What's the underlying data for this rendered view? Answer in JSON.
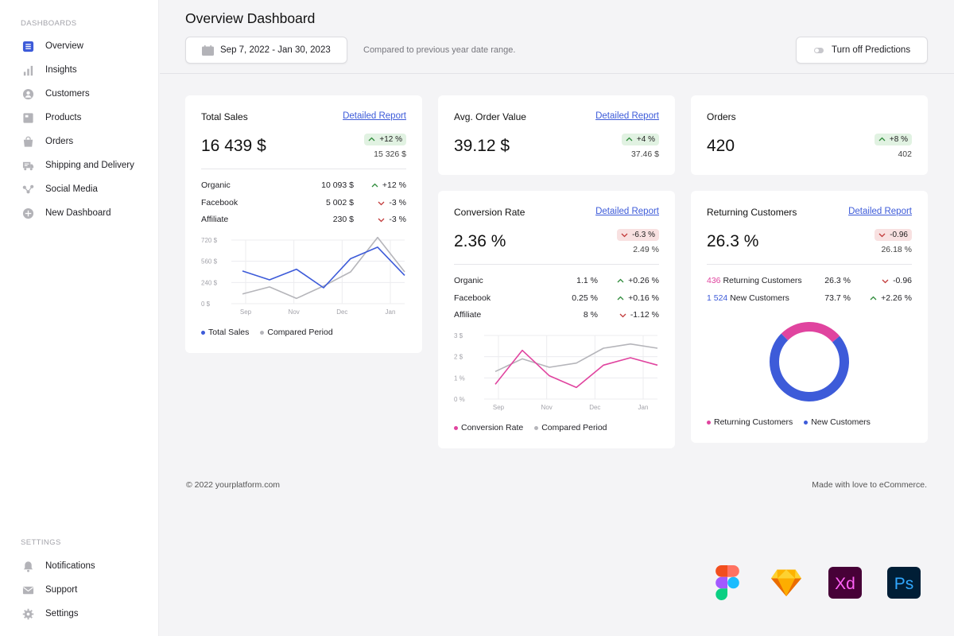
{
  "sidebar": {
    "dashboards_heading": "DASHBOARDS",
    "settings_heading": "SETTINGS",
    "items": [
      {
        "label": "Overview",
        "icon": "overview-icon",
        "active": true
      },
      {
        "label": "Insights",
        "icon": "bar-chart-icon"
      },
      {
        "label": "Customers",
        "icon": "user-icon"
      },
      {
        "label": "Products",
        "icon": "product-icon"
      },
      {
        "label": "Orders",
        "icon": "bag-icon"
      },
      {
        "label": "Shipping and Delivery",
        "icon": "truck-icon"
      },
      {
        "label": "Social Media",
        "icon": "share-icon"
      },
      {
        "label": "New Dashboard",
        "icon": "plus-circle-icon"
      }
    ],
    "settings_items": [
      {
        "label": "Notifications",
        "icon": "bell-icon"
      },
      {
        "label": "Support",
        "icon": "mail-icon"
      },
      {
        "label": "Settings",
        "icon": "gear-icon"
      }
    ]
  },
  "header": {
    "title": "Overview Dashboard",
    "date_range": "Sep 7, 2022 - Jan 30, 2023",
    "compare_note": "Compared to previous year date range.",
    "predictions_button": "Turn off Predictions"
  },
  "colors": {
    "accent_blue": "#3d5bd9",
    "pink": "#e0449f",
    "gray_line": "#b5b5ba",
    "up_green": "#2e8b3a",
    "down_red": "#c23a3a"
  },
  "cards": {
    "total_sales": {
      "title": "Total Sales",
      "link": "Detailed Report",
      "value": "16 439 $",
      "delta": "+12 %",
      "delta_dir": "up",
      "previous": "15 326 $",
      "rows": [
        {
          "label": "Organic",
          "value": "10 093 $",
          "change": "+12 %",
          "dir": "up"
        },
        {
          "label": "Facebook",
          "value": "5 002 $",
          "change": "-3 %",
          "dir": "down"
        },
        {
          "label": "Affiliate",
          "value": "230 $",
          "change": "-3 %",
          "dir": "down"
        }
      ]
    },
    "avg_order": {
      "title": "Avg. Order Value",
      "link": "Detailed Report",
      "value": "39.12 $",
      "delta": "+4 %",
      "delta_dir": "up",
      "previous": "37.46 $"
    },
    "orders": {
      "title": "Orders",
      "value": "420",
      "delta": "+8 %",
      "delta_dir": "up",
      "previous": "402"
    },
    "conversion": {
      "title": "Conversion Rate",
      "link": "Detailed Report",
      "value": "2.36 %",
      "delta": "-6.3 %",
      "delta_dir": "down",
      "previous": "2.49 %",
      "rows": [
        {
          "label": "Organic",
          "value": "1.1 %",
          "change": "+0.26 %",
          "dir": "up"
        },
        {
          "label": "Facebook",
          "value": "0.25 %",
          "change": "+0.16 %",
          "dir": "up"
        },
        {
          "label": "Affiliate",
          "value": "8 %",
          "change": "-1.12 %",
          "dir": "down"
        }
      ]
    },
    "returning": {
      "title": "Returning Customers",
      "link": "Detailed Report",
      "value": "26.3 %",
      "delta": "-0.96",
      "delta_dir": "down",
      "previous": "26.18 %",
      "rows": [
        {
          "count": "436",
          "label": "Returning Customers",
          "value": "26.3 %",
          "change": "-0.96",
          "dir": "down",
          "count_color": "#e0449f"
        },
        {
          "count": "1 524",
          "label": "New Customers",
          "value": "73.7 %",
          "change": "+2.26 %",
          "dir": "up",
          "count_color": "#3d5bd9"
        }
      ]
    }
  },
  "chart_data": [
    {
      "type": "line",
      "categories": [
        "Sep",
        "Nov",
        "Dec",
        "Jan"
      ],
      "y_ticks": [
        "720 $",
        "560 $",
        "240 $",
        "0 $"
      ],
      "ylim": [
        0,
        720
      ],
      "x": [
        0,
        1,
        2,
        3,
        4,
        5,
        6
      ],
      "series": [
        {
          "name": "Total Sales",
          "color": "#3d5bd9",
          "values": [
            370,
            270,
            390,
            180,
            510,
            640,
            320
          ]
        },
        {
          "name": "Compared Period",
          "color": "#b5b5ba",
          "values": [
            110,
            190,
            60,
            200,
            360,
            750,
            360
          ]
        }
      ],
      "legend_position": "bottom-left",
      "grid": true
    },
    {
      "type": "line",
      "categories": [
        "Sep",
        "Nov",
        "Dec",
        "Jan"
      ],
      "y_ticks": [
        "3 $",
        "2 $",
        "1 %",
        "0 %"
      ],
      "ylim": [
        0,
        3
      ],
      "x": [
        0,
        1,
        2,
        3,
        4,
        5,
        6
      ],
      "series": [
        {
          "name": "Conversion Rate",
          "color": "#e0449f",
          "values": [
            0.7,
            2.3,
            1.1,
            0.55,
            1.6,
            1.95,
            1.6
          ]
        },
        {
          "name": "Compared Period",
          "color": "#b5b5ba",
          "values": [
            1.3,
            1.9,
            1.5,
            1.7,
            2.4,
            2.6,
            2.4
          ]
        }
      ],
      "legend_position": "bottom-left",
      "grid": true
    },
    {
      "type": "pie",
      "categories": [
        "Returning Customers",
        "New Customers"
      ],
      "values": [
        26.3,
        73.7
      ],
      "colors": [
        "#e0449f",
        "#3d5bd9"
      ],
      "legend_position": "bottom-left"
    }
  ],
  "footer": {
    "copyright": "© 2022 yourplatform.com",
    "tagline": "Made with love to eCommerce."
  },
  "tools": {
    "xd_label": "Xd",
    "ps_label": "Ps"
  }
}
